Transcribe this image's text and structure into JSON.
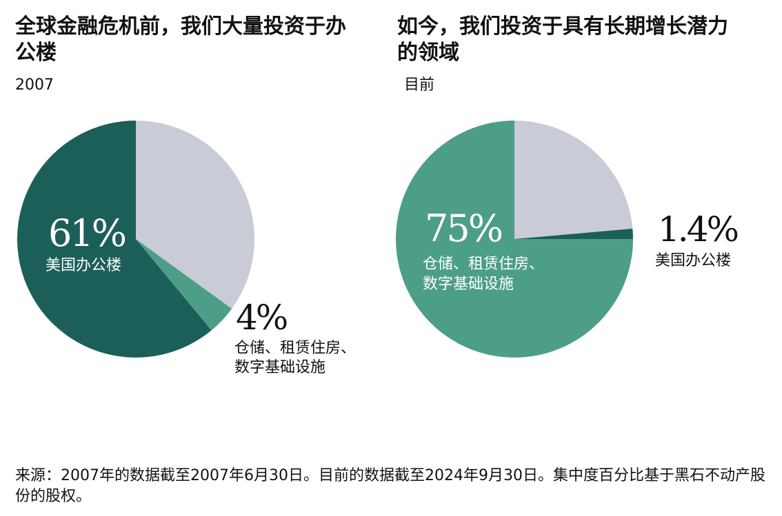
{
  "colors": {
    "dark_teal": "#1c5f58",
    "mid_teal": "#4d9e89",
    "light_gray": "#c9ccd6",
    "white": "#ffffff"
  },
  "chart_data": [
    {
      "type": "pie",
      "title": "全球金融危机前，我们大量投资于办公楼",
      "subtitle": "2007",
      "slices": [
        {
          "label": "美国办公楼",
          "value": 61,
          "value_text": "61%",
          "color": "#1c5f58"
        },
        {
          "label": "仓储、租赁住房、数字基础设施",
          "value": 4,
          "value_text": "4%",
          "color": "#4d9e89"
        },
        {
          "label": "",
          "value": 35,
          "color": "#c9ccd6"
        }
      ]
    },
    {
      "type": "pie",
      "title": "如今，我们投资于具有长期增长潜力的领域",
      "subtitle": "目前",
      "slices": [
        {
          "label": "仓储、租赁住房、数字基础设施",
          "value": 75,
          "value_text": "75%",
          "color": "#4d9e89"
        },
        {
          "label": "美国办公楼",
          "value": 1.4,
          "value_text": "1.4%",
          "color": "#1c5f58"
        },
        {
          "label": "",
          "value": 23.6,
          "color": "#c9ccd6"
        }
      ]
    }
  ],
  "labels": {
    "left": {
      "big_pct": "61%",
      "big_label": "美国办公楼",
      "small_pct": "4%",
      "small_label_line1": "仓储、租赁住房、",
      "small_label_line2": "数字基础设施"
    },
    "right": {
      "big_pct": "75%",
      "big_label_line1": "仓储、租赁住房、",
      "big_label_line2": "数字基础设施",
      "small_pct": "1.4%",
      "small_label": "美国办公楼"
    }
  },
  "footer": {
    "source": "来源：2007年的数据截至2007年6月30日。目前的数据截至2024年9月30日。集中度百分比基于黑石不动产股份的股权。"
  }
}
